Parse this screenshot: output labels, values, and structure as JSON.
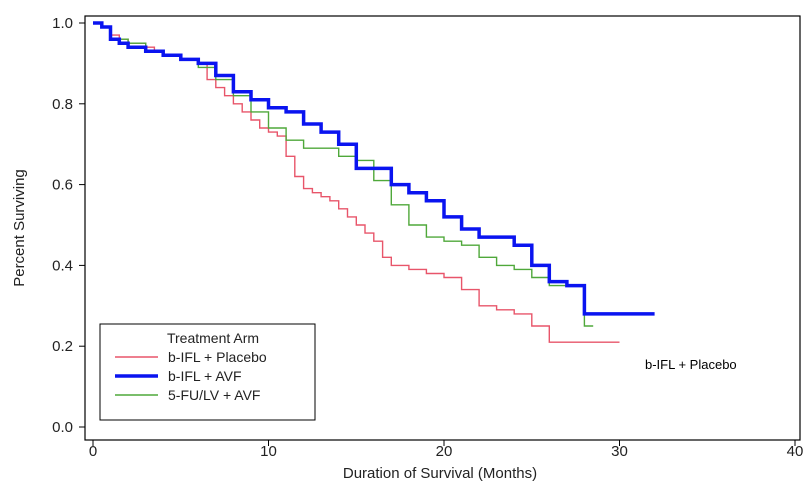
{
  "chart_data": {
    "type": "line",
    "step": true,
    "xlabel": "Duration of Survival (Months)",
    "ylabel": "Percent Surviving",
    "xlim": [
      0,
      40
    ],
    "ylim": [
      0,
      1.0
    ],
    "xticks": [
      0,
      10,
      20,
      30,
      40
    ],
    "yticks": [
      0.0,
      0.2,
      0.4,
      0.6,
      0.8,
      1.0
    ],
    "xtick_labels": [
      "0",
      "10",
      "20",
      "30",
      "40"
    ],
    "ytick_labels": [
      "0.0",
      "0.2",
      "0.4",
      "0.6",
      "0.8",
      "1.0"
    ],
    "grid": false,
    "legend": {
      "title": "Treatment Arm",
      "placement": "bottom-left"
    },
    "annotation": "b-IFL + Placebo",
    "series": [
      {
        "name": "b-IFL + Placebo",
        "color": "#e8556a",
        "linewidth": "thin",
        "x": [
          0,
          0.5,
          1,
          1.5,
          2,
          2.5,
          3,
          3.5,
          4,
          5,
          6,
          6.5,
          7,
          7.5,
          8,
          8.5,
          9,
          9.5,
          10,
          10.5,
          11,
          11.5,
          12,
          12.5,
          13,
          13.5,
          14,
          14.5,
          15,
          15.5,
          16,
          16.5,
          17,
          18,
          19,
          20,
          21,
          22,
          23,
          24,
          25,
          26,
          27,
          28,
          29,
          30
        ],
        "y": [
          1.0,
          0.99,
          0.97,
          0.96,
          0.95,
          0.95,
          0.94,
          0.93,
          0.92,
          0.91,
          0.9,
          0.86,
          0.84,
          0.82,
          0.8,
          0.78,
          0.76,
          0.74,
          0.73,
          0.72,
          0.67,
          0.62,
          0.59,
          0.58,
          0.57,
          0.56,
          0.54,
          0.52,
          0.5,
          0.48,
          0.46,
          0.42,
          0.4,
          0.39,
          0.38,
          0.37,
          0.34,
          0.3,
          0.29,
          0.28,
          0.25,
          0.21,
          0.21,
          0.21,
          0.21,
          0.21
        ]
      },
      {
        "name": "b-IFL + AVF",
        "color": "#0a14f0",
        "linewidth": "thick",
        "x": [
          0,
          0.5,
          1,
          1.5,
          2,
          3,
          4,
          5,
          6,
          7,
          8,
          9,
          10,
          11,
          12,
          13,
          14,
          15,
          16,
          17,
          18,
          19,
          20,
          21,
          22,
          23,
          24,
          25,
          26,
          27,
          28,
          29,
          30,
          31,
          32
        ],
        "y": [
          1.0,
          0.99,
          0.96,
          0.95,
          0.94,
          0.93,
          0.92,
          0.91,
          0.9,
          0.87,
          0.83,
          0.81,
          0.79,
          0.78,
          0.75,
          0.73,
          0.7,
          0.64,
          0.64,
          0.6,
          0.58,
          0.56,
          0.52,
          0.49,
          0.47,
          0.47,
          0.45,
          0.4,
          0.36,
          0.35,
          0.28,
          0.28,
          0.28,
          0.28,
          0.28
        ]
      },
      {
        "name": "5-FU/LV + AVF",
        "color": "#4fa83a",
        "linewidth": "thin",
        "x": [
          0,
          0.5,
          1,
          2,
          3,
          4,
          5,
          6,
          7,
          8,
          9,
          10,
          11,
          12,
          13,
          14,
          15,
          16,
          17,
          18,
          19,
          20,
          21,
          22,
          23,
          24,
          25,
          26,
          27,
          28,
          28.5
        ],
        "y": [
          1.0,
          0.99,
          0.96,
          0.95,
          0.93,
          0.92,
          0.91,
          0.89,
          0.86,
          0.82,
          0.78,
          0.74,
          0.71,
          0.69,
          0.69,
          0.67,
          0.66,
          0.61,
          0.55,
          0.5,
          0.47,
          0.46,
          0.45,
          0.42,
          0.4,
          0.39,
          0.37,
          0.35,
          0.35,
          0.25,
          0.25
        ]
      }
    ]
  }
}
